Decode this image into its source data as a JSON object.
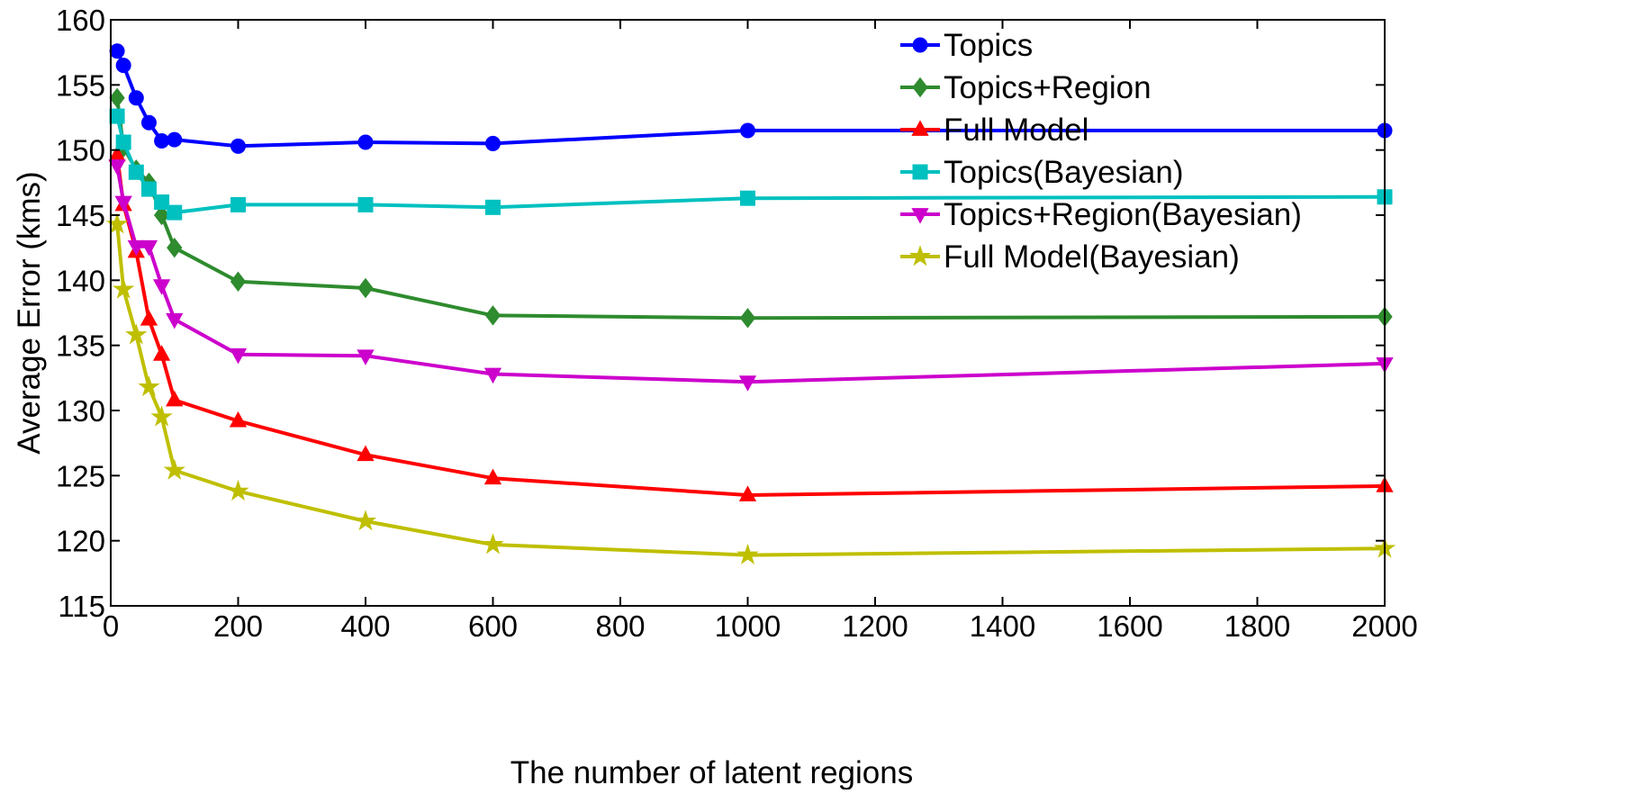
{
  "chart_data": {
    "type": "line",
    "title": "",
    "xlabel": "The number of latent regions",
    "ylabel": "Average Error (kms)",
    "xlim": [
      0,
      2000
    ],
    "ylim": [
      115,
      160
    ],
    "x_ticks": [
      0,
      200,
      400,
      600,
      800,
      1000,
      1200,
      1400,
      1600,
      1800,
      2000
    ],
    "y_ticks": [
      115,
      120,
      125,
      130,
      135,
      140,
      145,
      150,
      155,
      160
    ],
    "x_tick_labels": [
      "0",
      "200",
      "400",
      "600",
      "800",
      "1000",
      "1200",
      "1400",
      "1600",
      "1800",
      "2000"
    ],
    "y_tick_labels": [
      "115",
      "120",
      "125",
      "130",
      "135",
      "140",
      "145",
      "150",
      "155",
      "160"
    ],
    "grid": false,
    "legend_position": "top-right",
    "series": [
      {
        "name": "Topics",
        "color": "#0000ff",
        "marker": "circle",
        "x": [
          10,
          20,
          40,
          60,
          80,
          100,
          200,
          400,
          600,
          1000,
          2000
        ],
        "y": [
          157.6,
          156.5,
          154.0,
          152.1,
          150.7,
          150.8,
          150.3,
          150.6,
          150.5,
          151.5,
          151.5
        ]
      },
      {
        "name": "Topics+Region",
        "color": "#2e8b2e",
        "marker": "diamond",
        "x": [
          10,
          20,
          40,
          60,
          80,
          100,
          200,
          400,
          600,
          1000,
          2000
        ],
        "y": [
          154.0,
          150.2,
          148.5,
          147.5,
          145.0,
          142.5,
          139.9,
          139.4,
          137.3,
          137.1,
          137.2
        ]
      },
      {
        "name": "Full Model",
        "color": "#ff0000",
        "marker": "triangle-up",
        "x": [
          10,
          20,
          40,
          60,
          80,
          100,
          200,
          400,
          600,
          1000,
          2000
        ],
        "y": [
          149.6,
          145.8,
          142.2,
          137.0,
          134.3,
          130.8,
          129.2,
          126.6,
          124.8,
          123.5,
          124.2
        ]
      },
      {
        "name": "Topics(Bayesian)",
        "color": "#00c0c0",
        "marker": "square",
        "x": [
          10,
          20,
          40,
          60,
          80,
          100,
          200,
          400,
          600,
          1000,
          2000
        ],
        "y": [
          152.6,
          150.6,
          148.3,
          147.0,
          146.0,
          145.2,
          145.8,
          145.8,
          145.6,
          146.3,
          146.4
        ]
      },
      {
        "name": "Topics+Region(Bayesian)",
        "color": "#cc00cc",
        "marker": "triangle-down",
        "x": [
          10,
          20,
          40,
          60,
          80,
          100,
          200,
          400,
          600,
          1000,
          2000
        ],
        "y": [
          148.8,
          146.0,
          142.6,
          142.6,
          139.6,
          137.0,
          134.3,
          134.2,
          132.8,
          132.2,
          133.6
        ]
      },
      {
        "name": "Full Model(Bayesian)",
        "color": "#bfbf00",
        "marker": "star",
        "x": [
          10,
          20,
          40,
          60,
          80,
          100,
          200,
          400,
          600,
          1000,
          2000
        ],
        "y": [
          144.3,
          139.3,
          135.8,
          131.8,
          129.5,
          125.4,
          123.8,
          121.5,
          119.7,
          118.9,
          119.4
        ]
      }
    ]
  }
}
